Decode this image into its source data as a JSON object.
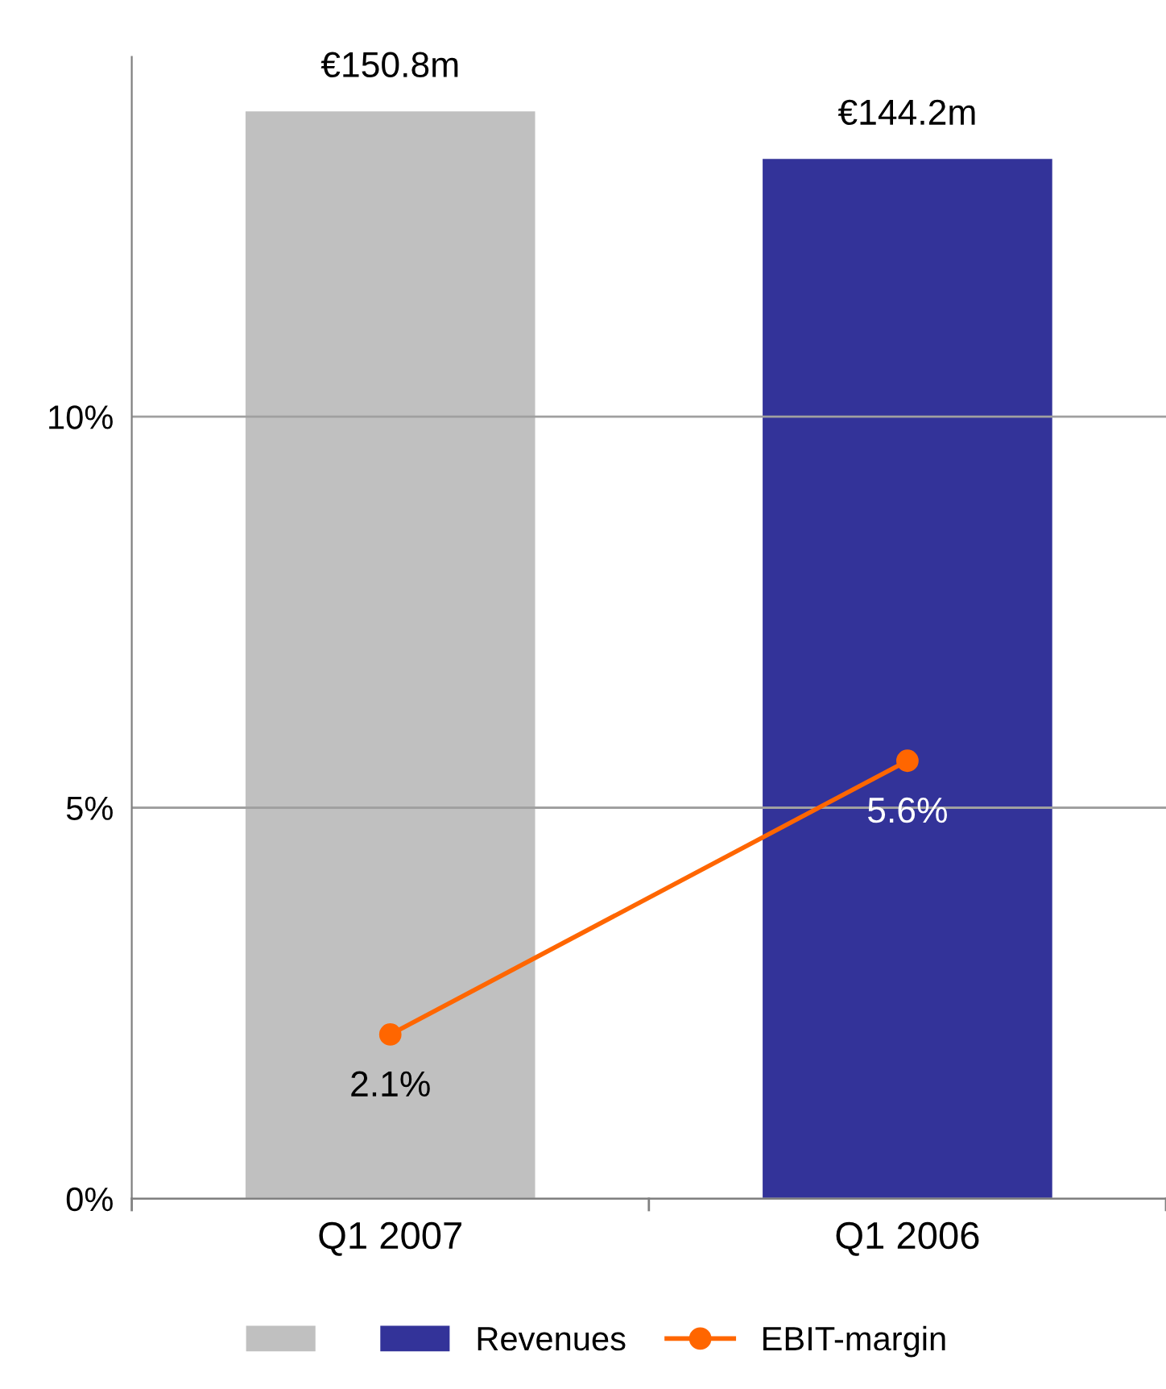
{
  "chart_data": {
    "type": "bar",
    "categories": [
      "Q1 2007",
      "Q1 2006"
    ],
    "series": [
      {
        "name": "Revenues",
        "axis": "y2",
        "values": [
          150.8,
          144.2
        ],
        "colors": [
          "#c0c0c0",
          "#333399"
        ],
        "value_labels": [
          "€150.8m",
          "€144.2m"
        ]
      },
      {
        "type": "line",
        "name": "EBIT-margin",
        "color": "#ff6600",
        "values": [
          2.1,
          5.6
        ],
        "value_labels": [
          "2.1%",
          "5.6%"
        ]
      }
    ],
    "ylim": [
      0,
      14.6
    ],
    "yticks": [
      {
        "value": 0,
        "label": "0%"
      },
      {
        "value": 5,
        "label": "5%"
      },
      {
        "value": 10,
        "label": "10%"
      }
    ],
    "grid": "y",
    "legend": "bottom",
    "marker": "circle",
    "line_style": "solid"
  }
}
